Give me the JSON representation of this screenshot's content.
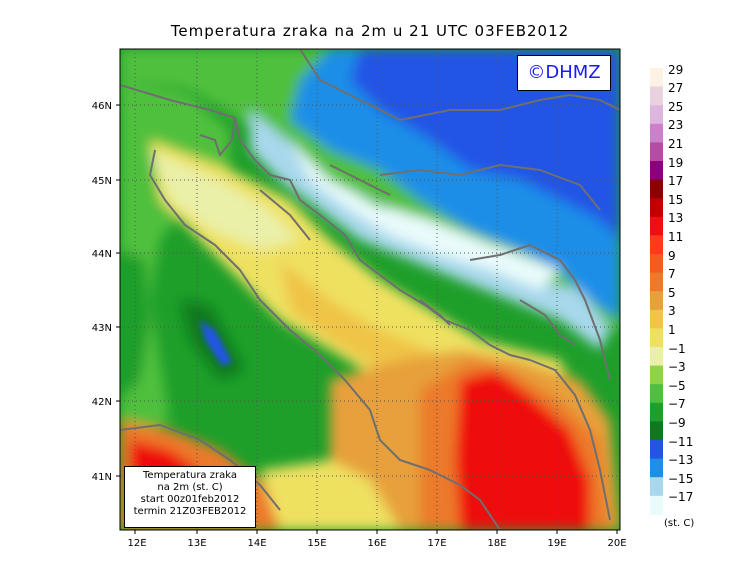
{
  "title": "Temperatura zraka na 2m u 21 UTC 03FEB2012",
  "credit": "©DHMZ",
  "info_box": {
    "line1": "Temperatura zraka",
    "line2": "na 2m (st. C)",
    "line3": "start 00z01feb2012",
    "line4": "termin 21Z03FEB2012"
  },
  "lat_labels": [
    "46N",
    "45N",
    "44N",
    "43N",
    "42N",
    "41N"
  ],
  "lon_labels": [
    "12E",
    "13E",
    "14E",
    "15E",
    "16E",
    "17E",
    "18E",
    "19E",
    "20E"
  ],
  "colorbar": {
    "labels": [
      "29",
      "27",
      "25",
      "23",
      "21",
      "19",
      "17",
      "15",
      "13",
      "11",
      "9",
      "7",
      "5",
      "3",
      "1",
      "−1",
      "−3",
      "−5",
      "−7",
      "−9",
      "−11",
      "−13",
      "−15",
      "−17"
    ],
    "colors": [
      "#fdf2e4",
      "#e8d2e0",
      "#dcb6dc",
      "#cc80cc",
      "#b84aa6",
      "#8a0080",
      "#8c0000",
      "#c00000",
      "#ee1010",
      "#ff3a1a",
      "#f55a1e",
      "#ec7a2a",
      "#e7a03a",
      "#efc447",
      "#efe160",
      "#eaf0a8",
      "#8fd447",
      "#4fc03c",
      "#1e9f2a",
      "#0e7a1e",
      "#2355e5",
      "#1e8ee8",
      "#a8d8ec",
      "#e9fbfb"
    ],
    "unit": "(st. C)"
  },
  "colors": {
    "coast": "#6f6f6f",
    "grid": "#555555"
  }
}
